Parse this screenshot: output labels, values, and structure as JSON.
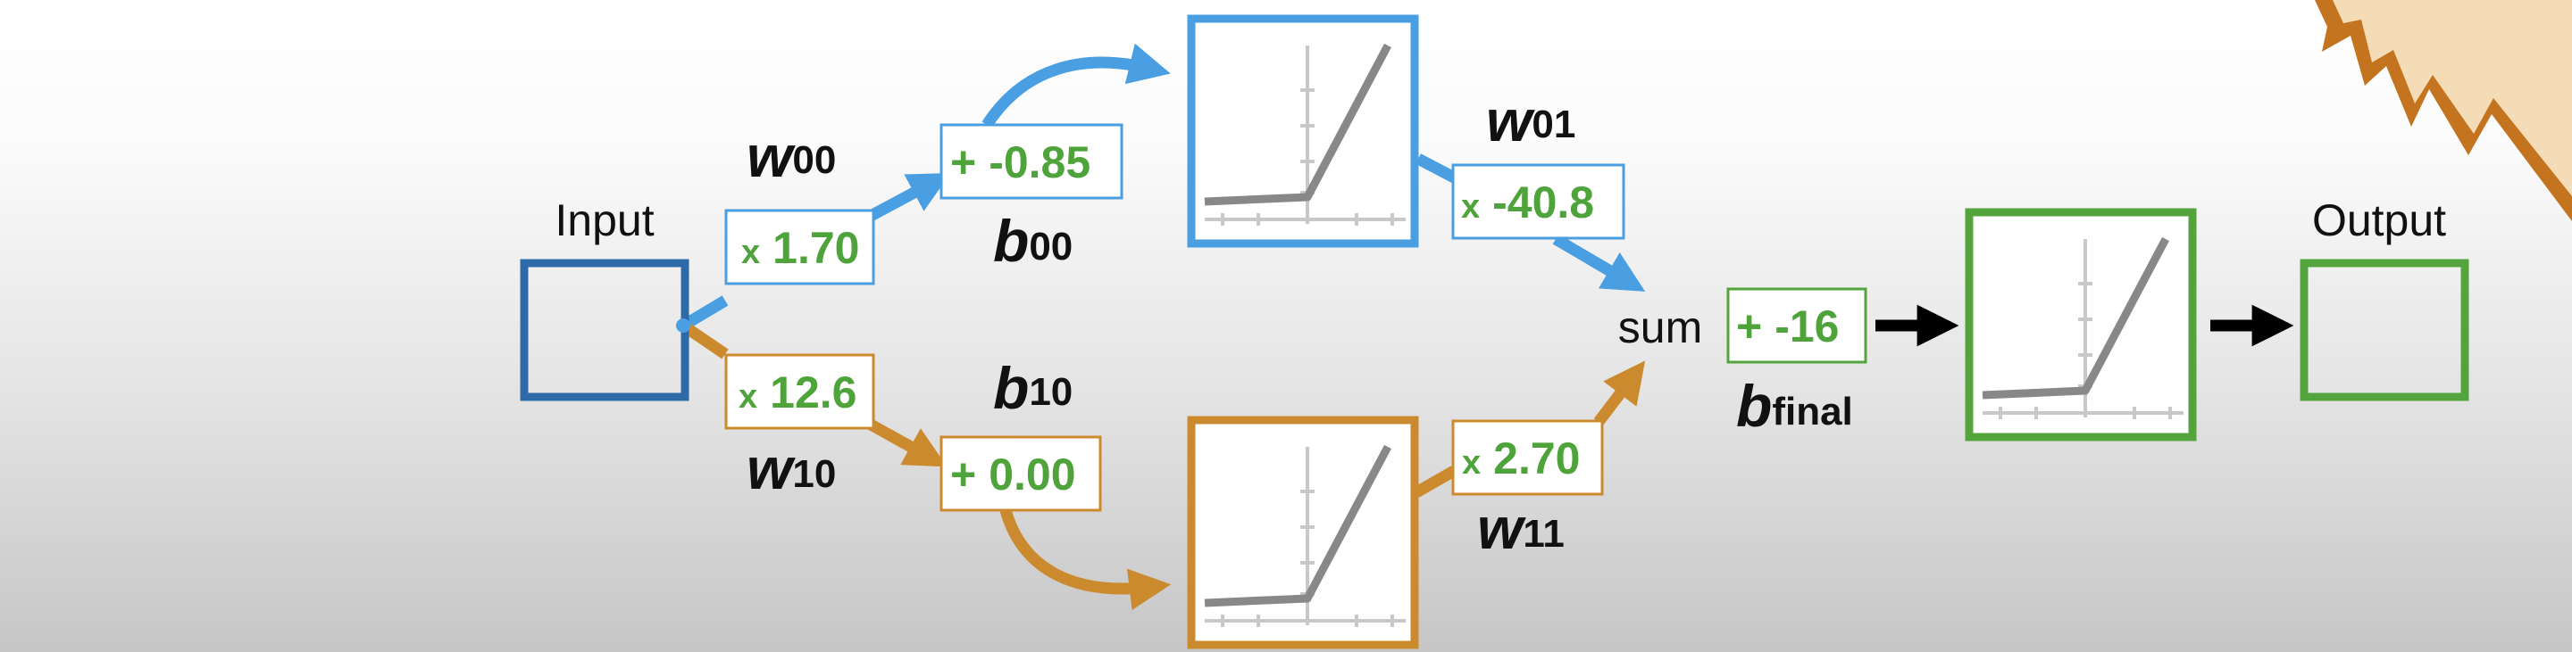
{
  "labels": {
    "input": "Input",
    "output": "Output",
    "sum": "sum"
  },
  "weights": {
    "w00": {
      "symbol": "w",
      "sub": "00",
      "op": "x",
      "value": "1.70"
    },
    "w10": {
      "symbol": "w",
      "sub": "10",
      "op": "x",
      "value": "12.6"
    },
    "w01": {
      "symbol": "w",
      "sub": "01",
      "op": "x",
      "value": "-40.8"
    },
    "w11": {
      "symbol": "w",
      "sub": "11",
      "op": "x",
      "value": "2.70"
    }
  },
  "biases": {
    "b00": {
      "symbol": "b",
      "sub": "00",
      "op": "+",
      "value": "-0.85"
    },
    "b10": {
      "symbol": "b",
      "sub": "10",
      "op": "+",
      "value": "0.00"
    },
    "bfinal": {
      "symbol": "b",
      "sub": "final",
      "op": "+",
      "value": "-16"
    }
  },
  "activation_icon": "relu-graph-icon",
  "colors": {
    "blue": "#4a9fe3",
    "orange": "#cc8a2e",
    "green": "#54a43e",
    "input_box": "#2f6aa8",
    "value_text": "#4ea33b"
  }
}
